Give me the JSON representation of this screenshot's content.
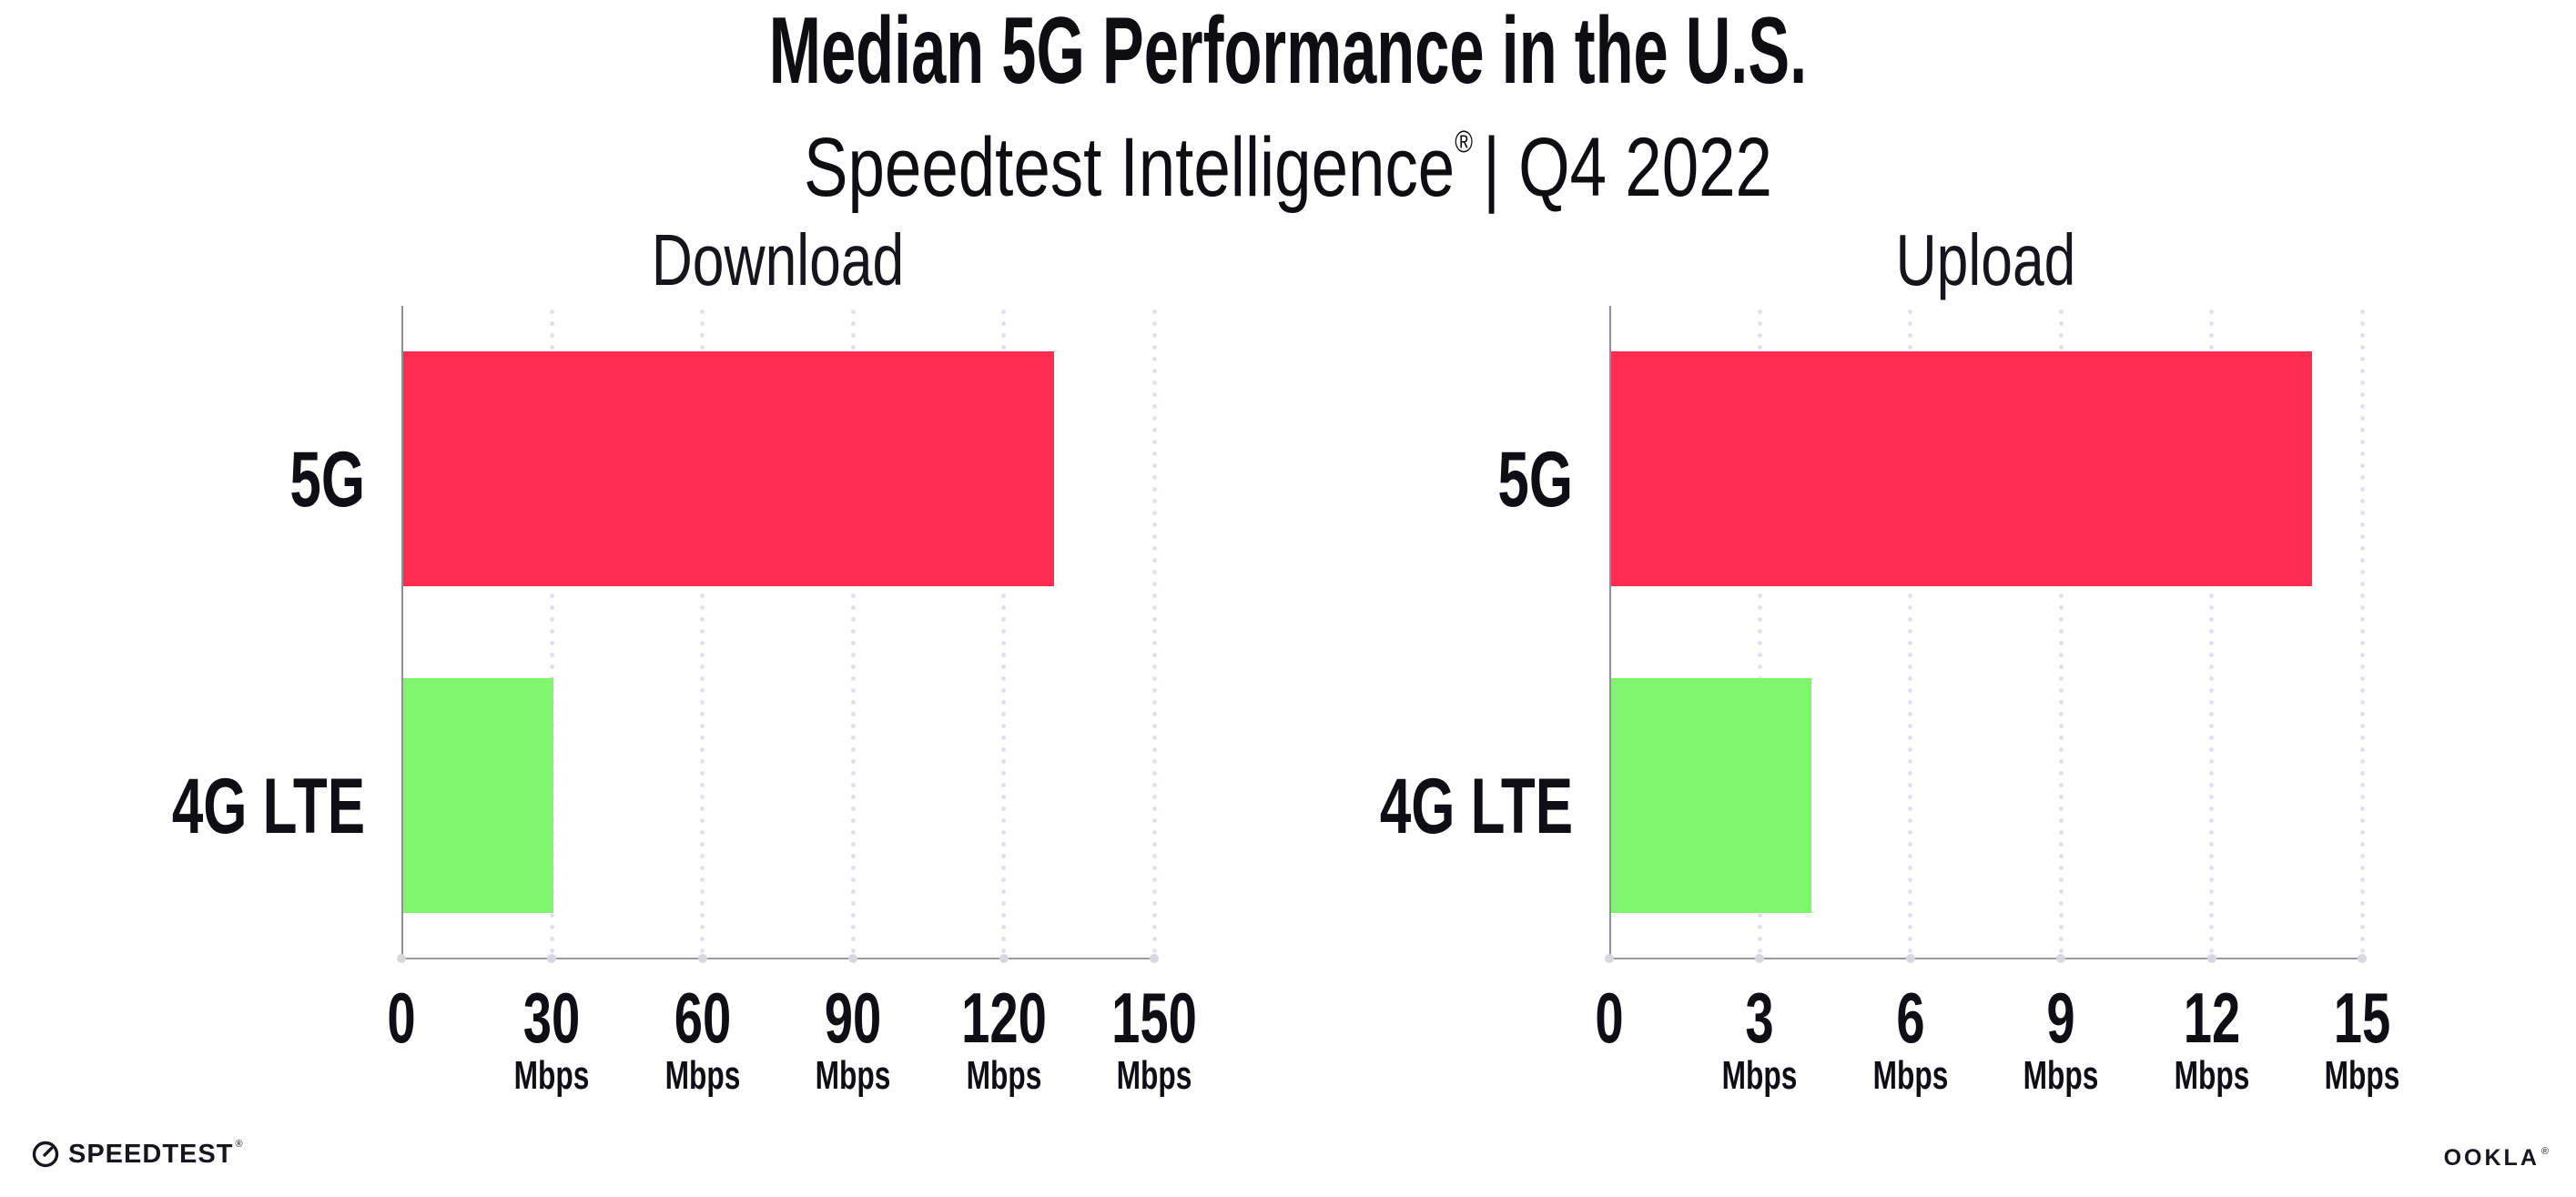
{
  "header": {
    "title": "Median 5G Performance in the U.S.",
    "subtitle_brand": "Speedtest Intelligence",
    "subtitle_reg": "®",
    "subtitle_rest": "| Q4 2022"
  },
  "chart_data": [
    {
      "type": "bar",
      "orientation": "horizontal",
      "title": "Download",
      "categories": [
        "5G",
        "4G LTE"
      ],
      "values": [
        130,
        30
      ],
      "unit": "Mbps",
      "xlim": [
        0,
        150
      ],
      "xticks": [
        0,
        30,
        60,
        90,
        120,
        150
      ],
      "bar_colors": [
        "#FF2D52",
        "#7FF66D"
      ],
      "grid": "vertical-dotted",
      "legend": false
    },
    {
      "type": "bar",
      "orientation": "horizontal",
      "title": "Upload",
      "categories": [
        "5G",
        "4G LTE"
      ],
      "values": [
        14,
        4
      ],
      "unit": "Mbps",
      "xlim": [
        0,
        15
      ],
      "xticks": [
        0,
        3,
        6,
        9,
        12,
        15
      ],
      "bar_colors": [
        "#FF2D52",
        "#7FF66D"
      ],
      "grid": "vertical-dotted",
      "legend": false
    }
  ],
  "footer": {
    "speedtest_label": "SPEEDTEST",
    "speedtest_reg": "®",
    "ookla_label": "OOKLA",
    "ookla_reg": "®"
  },
  "colors": {
    "bar_5g": "#FF2D52",
    "bar_4g_lte": "#7FF66D",
    "text": "#0E0E14",
    "axis": "#8F8F96",
    "gridline_dot": "#DFDFEA",
    "tick_dot": "#D7D7E2"
  }
}
